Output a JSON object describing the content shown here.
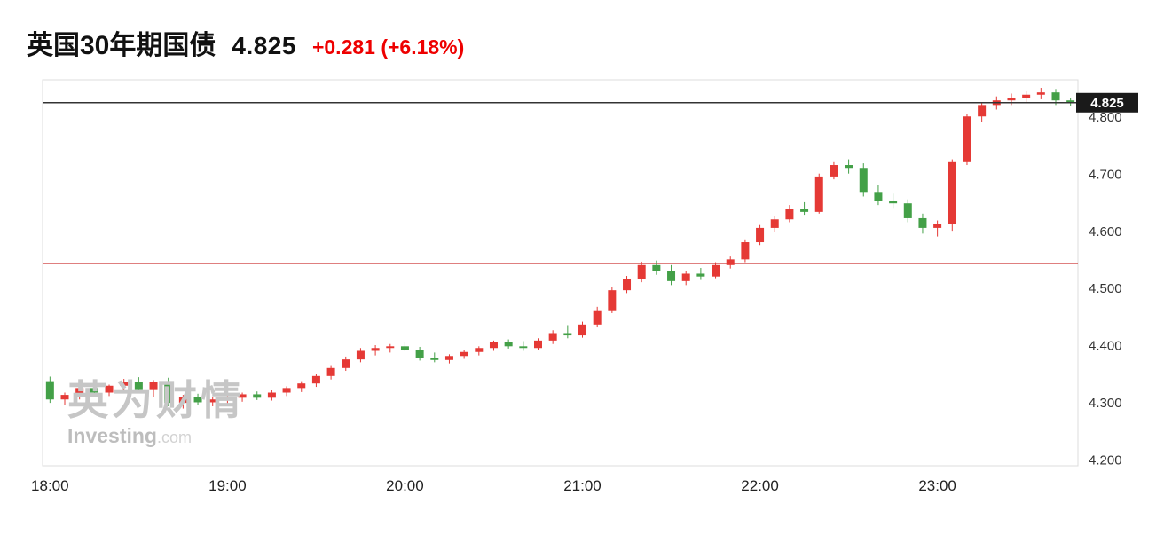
{
  "header": {
    "title": "英国30年期国债",
    "price": "4.825",
    "change": "+0.281 (+6.18%)",
    "change_color": "#ee0000"
  },
  "watermark": {
    "cn": "英为财情",
    "en": "Investing",
    "domain": ".com",
    "cn_color": "#c6c6c6",
    "en_color": "#bdbdbd",
    "domain_color": "#d2d2d2"
  },
  "chart_data": {
    "type": "candlestick",
    "title": "英国30年期国债",
    "price_label": "4.825",
    "current_price": 4.825,
    "previous_close": 4.544,
    "ylim": [
      4.19,
      4.865
    ],
    "y_ticks": [
      "4.800",
      "4.700",
      "4.600",
      "4.500",
      "4.400",
      "4.300",
      "4.200"
    ],
    "x_ticks": [
      "18:00",
      "19:00",
      "20:00",
      "21:00",
      "22:00",
      "23:00"
    ],
    "colors": {
      "up": "#e53935",
      "down": "#43a047",
      "current_line": "#333333",
      "prev_close_line": "#cc3333",
      "frame": "#dcdcdc",
      "tag_bg": "#1a1a1a",
      "tag_text": "#ffffff",
      "axis_text": "#333333"
    },
    "candle_columns": [
      "time",
      "open",
      "high",
      "low",
      "close"
    ],
    "candles": [
      [
        "18:00",
        4.338,
        4.346,
        4.3,
        4.306
      ],
      [
        "18:05",
        4.306,
        4.318,
        4.296,
        4.314
      ],
      [
        "18:10",
        4.314,
        4.33,
        4.306,
        4.326
      ],
      [
        "18:15",
        4.326,
        4.334,
        4.314,
        4.318
      ],
      [
        "18:20",
        4.318,
        4.332,
        4.312,
        4.33
      ],
      [
        "18:25",
        4.33,
        4.342,
        4.322,
        4.336
      ],
      [
        "18:30",
        4.336,
        4.345,
        4.318,
        4.324
      ],
      [
        "18:35",
        4.324,
        4.34,
        4.31,
        4.336
      ],
      [
        "18:40",
        4.336,
        4.344,
        4.294,
        4.3
      ],
      [
        "18:45",
        4.3,
        4.314,
        4.29,
        4.31
      ],
      [
        "18:50",
        4.31,
        4.316,
        4.296,
        4.301
      ],
      [
        "18:55",
        4.301,
        4.31,
        4.294,
        4.306
      ],
      [
        "19:00",
        4.306,
        4.313,
        4.298,
        4.309
      ],
      [
        "19:05",
        4.309,
        4.318,
        4.302,
        4.315
      ],
      [
        "19:10",
        4.315,
        4.32,
        4.305,
        4.309
      ],
      [
        "19:15",
        4.309,
        4.322,
        4.304,
        4.318
      ],
      [
        "19:20",
        4.318,
        4.329,
        4.312,
        4.326
      ],
      [
        "19:25",
        4.326,
        4.338,
        4.319,
        4.334
      ],
      [
        "19:30",
        4.334,
        4.351,
        4.328,
        4.347
      ],
      [
        "19:35",
        4.347,
        4.366,
        4.341,
        4.361
      ],
      [
        "19:40",
        4.361,
        4.381,
        4.356,
        4.376
      ],
      [
        "19:45",
        4.376,
        4.396,
        4.371,
        4.391
      ],
      [
        "19:50",
        4.391,
        4.401,
        4.383,
        4.396
      ],
      [
        "19:55",
        4.396,
        4.403,
        4.388,
        4.399
      ],
      [
        "20:00",
        4.399,
        4.406,
        4.39,
        4.393
      ],
      [
        "20:05",
        4.393,
        4.398,
        4.374,
        4.379
      ],
      [
        "20:10",
        4.379,
        4.388,
        4.371,
        4.375
      ],
      [
        "20:15",
        4.375,
        4.385,
        4.369,
        4.382
      ],
      [
        "20:20",
        4.382,
        4.392,
        4.377,
        4.389
      ],
      [
        "20:25",
        4.389,
        4.399,
        4.383,
        4.396
      ],
      [
        "20:30",
        4.396,
        4.409,
        4.391,
        4.406
      ],
      [
        "20:35",
        4.406,
        4.411,
        4.395,
        4.399
      ],
      [
        "20:40",
        4.399,
        4.408,
        4.391,
        4.396
      ],
      [
        "20:45",
        4.396,
        4.413,
        4.392,
        4.409
      ],
      [
        "20:50",
        4.409,
        4.427,
        4.403,
        4.422
      ],
      [
        "20:55",
        4.422,
        4.436,
        4.413,
        4.418
      ],
      [
        "21:00",
        4.418,
        4.442,
        4.414,
        4.437
      ],
      [
        "21:05",
        4.437,
        4.468,
        4.432,
        4.462
      ],
      [
        "21:10",
        4.462,
        4.502,
        4.457,
        4.497
      ],
      [
        "21:15",
        4.497,
        4.522,
        4.492,
        4.516
      ],
      [
        "21:20",
        4.516,
        4.547,
        4.511,
        4.541
      ],
      [
        "21:25",
        4.541,
        4.549,
        4.524,
        4.531
      ],
      [
        "21:30",
        4.531,
        4.541,
        4.506,
        4.513
      ],
      [
        "21:35",
        4.513,
        4.531,
        4.506,
        4.526
      ],
      [
        "21:40",
        4.526,
        4.536,
        4.515,
        4.521
      ],
      [
        "21:45",
        4.521,
        4.546,
        4.518,
        4.541
      ],
      [
        "21:50",
        4.541,
        4.556,
        4.535,
        4.551
      ],
      [
        "21:55",
        4.551,
        4.586,
        4.546,
        4.581
      ],
      [
        "22:00",
        4.581,
        4.611,
        4.576,
        4.606
      ],
      [
        "22:05",
        4.606,
        4.626,
        4.599,
        4.621
      ],
      [
        "22:10",
        4.621,
        4.646,
        4.616,
        4.639
      ],
      [
        "22:15",
        4.639,
        4.651,
        4.629,
        4.634
      ],
      [
        "22:20",
        4.634,
        4.701,
        4.631,
        4.696
      ],
      [
        "22:25",
        4.696,
        4.721,
        4.691,
        4.716
      ],
      [
        "22:30",
        4.716,
        4.726,
        4.701,
        4.711
      ],
      [
        "22:35",
        4.711,
        4.719,
        4.661,
        4.669
      ],
      [
        "22:40",
        4.669,
        4.681,
        4.646,
        4.653
      ],
      [
        "22:45",
        4.653,
        4.666,
        4.641,
        4.649
      ],
      [
        "22:50",
        4.649,
        4.656,
        4.616,
        4.623
      ],
      [
        "22:55",
        4.623,
        4.631,
        4.596,
        4.606
      ],
      [
        "23:00",
        4.606,
        4.619,
        4.591,
        4.613
      ],
      [
        "23:05",
        4.613,
        4.726,
        4.601,
        4.721
      ],
      [
        "23:10",
        4.721,
        4.806,
        4.716,
        4.801
      ],
      [
        "23:15",
        4.801,
        4.826,
        4.791,
        4.821
      ],
      [
        "23:20",
        4.821,
        4.836,
        4.813,
        4.829
      ],
      [
        "23:25",
        4.829,
        4.841,
        4.821,
        4.833
      ],
      [
        "23:30",
        4.833,
        4.846,
        4.826,
        4.839
      ],
      [
        "23:35",
        4.839,
        4.851,
        4.831,
        4.843
      ],
      [
        "23:40",
        4.843,
        4.849,
        4.821,
        4.829
      ],
      [
        "23:45",
        4.829,
        4.834,
        4.819,
        4.825
      ]
    ]
  }
}
